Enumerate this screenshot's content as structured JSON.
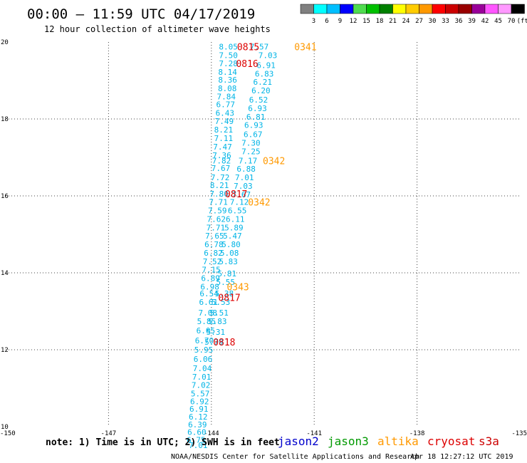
{
  "header": {
    "title": "00:00 — 11:59 UTC 04/17/2019",
    "subtitle": "12 hour collection of altimeter wave heights"
  },
  "color_scale": {
    "swatches": [
      "#808080",
      "#00ffff",
      "#00bfff",
      "#0000ff",
      "#4fdc4f",
      "#00c000",
      "#008000",
      "#ffff00",
      "#ffcc00",
      "#ff9900",
      "#ff0000",
      "#cc0000",
      "#990000",
      "#990099",
      "#ff55ff",
      "#ff99ff",
      "#000000"
    ],
    "labels": [
      "3",
      "6",
      "9",
      "12",
      "15",
      "18",
      "21",
      "24",
      "27",
      "30",
      "33",
      "36",
      "39",
      "42",
      "45",
      "70",
      "(ft)"
    ]
  },
  "footer": {
    "note": "note: 1) Time is in UTC; 2) SWH is in feet",
    "legend": [
      {
        "label": "jason2",
        "color": "#0000cc"
      },
      {
        "label": "jason3",
        "color": "#009900"
      },
      {
        "label": "altika",
        "color": "#ff9900"
      },
      {
        "label": "cryosat",
        "color": "#dd0000"
      },
      {
        "label": "s3a",
        "color": "#cc0000"
      }
    ],
    "credit": "NOAA/NESDIS Center for Satellite Applications and Research",
    "timestamp": "Apr 18 12:27:12 UTC 2019"
  },
  "chart_data": {
    "type": "scatter",
    "xlim": [
      -150,
      -135
    ],
    "ylim": [
      10,
      20
    ],
    "xticks": [
      "-150",
      "-147",
      "-144",
      "-141",
      "-138",
      "-135"
    ],
    "yticks": [
      "10",
      "12",
      "14",
      "16",
      "18",
      "20"
    ],
    "grid": true,
    "wave_color": "#00b4e6",
    "series": [
      {
        "name": "jason3",
        "color": "#00b4e6",
        "points": [
          {
            "x": -143.78,
            "y": 19.88,
            "v": "8.05"
          },
          {
            "x": -142.88,
            "y": 19.88,
            "v": "7.57"
          },
          {
            "x": -143.78,
            "y": 19.66,
            "v": "7.50"
          },
          {
            "x": -142.63,
            "y": 19.66,
            "v": "7.03"
          },
          {
            "x": -143.78,
            "y": 19.44,
            "v": "7.28"
          },
          {
            "x": -142.68,
            "y": 19.4,
            "v": "6.91"
          },
          {
            "x": -143.8,
            "y": 19.22,
            "v": "8.14"
          },
          {
            "x": -142.73,
            "y": 19.18,
            "v": "6.83"
          },
          {
            "x": -143.8,
            "y": 19.02,
            "v": "8.36"
          },
          {
            "x": -142.78,
            "y": 18.96,
            "v": "6.21"
          },
          {
            "x": -143.81,
            "y": 18.8,
            "v": "8.08"
          },
          {
            "x": -142.83,
            "y": 18.74,
            "v": "6.20"
          },
          {
            "x": -143.84,
            "y": 18.58,
            "v": "7.84"
          },
          {
            "x": -142.9,
            "y": 18.5,
            "v": "6.52"
          },
          {
            "x": -143.86,
            "y": 18.38,
            "v": "6.77"
          },
          {
            "x": -142.93,
            "y": 18.28,
            "v": "6.93"
          },
          {
            "x": -143.88,
            "y": 18.16,
            "v": "6.43"
          },
          {
            "x": -142.98,
            "y": 18.06,
            "v": "6.81"
          },
          {
            "x": -143.9,
            "y": 17.94,
            "v": "7.49"
          },
          {
            "x": -143.04,
            "y": 17.84,
            "v": "6.93"
          },
          {
            "x": -143.92,
            "y": 17.72,
            "v": "8.21"
          },
          {
            "x": -143.06,
            "y": 17.6,
            "v": "6.67"
          },
          {
            "x": -143.92,
            "y": 17.5,
            "v": "7.11"
          },
          {
            "x": -143.12,
            "y": 17.38,
            "v": "7.30"
          },
          {
            "x": -143.95,
            "y": 17.28,
            "v": "7.47"
          },
          {
            "x": -143.12,
            "y": 17.16,
            "v": "7.25"
          },
          {
            "x": -143.97,
            "y": 17.06,
            "v": "7.36"
          },
          {
            "x": -143.21,
            "y": 16.92,
            "v": "7.17"
          },
          {
            "x": -143.98,
            "y": 16.92,
            "v": "7.82"
          },
          {
            "x": -143.26,
            "y": 16.7,
            "v": "6.88"
          },
          {
            "x": -144.0,
            "y": 16.72,
            "v": "7.67"
          },
          {
            "x": -143.31,
            "y": 16.48,
            "v": "7.01"
          },
          {
            "x": -144.02,
            "y": 16.48,
            "v": "7.72"
          },
          {
            "x": -143.35,
            "y": 16.26,
            "v": "7.03"
          },
          {
            "x": -144.04,
            "y": 16.28,
            "v": "8.21"
          },
          {
            "x": -144.05,
            "y": 16.06,
            "v": "7.80"
          },
          {
            "x": -143.4,
            "y": 16.04,
            "v": "7.67"
          },
          {
            "x": -144.07,
            "y": 15.84,
            "v": "7.71"
          },
          {
            "x": -143.46,
            "y": 15.84,
            "v": "7.12"
          },
          {
            "x": -144.1,
            "y": 15.62,
            "v": "7.59"
          },
          {
            "x": -143.52,
            "y": 15.62,
            "v": "6.55"
          },
          {
            "x": -144.13,
            "y": 15.4,
            "v": "7.62"
          },
          {
            "x": -143.58,
            "y": 15.4,
            "v": "6.11"
          },
          {
            "x": -144.15,
            "y": 15.18,
            "v": "7.71"
          },
          {
            "x": -143.62,
            "y": 15.18,
            "v": "5.89"
          },
          {
            "x": -144.18,
            "y": 14.96,
            "v": "7.65"
          },
          {
            "x": -143.66,
            "y": 14.96,
            "v": "5.47"
          },
          {
            "x": -144.2,
            "y": 14.74,
            "v": "6.78"
          },
          {
            "x": -143.7,
            "y": 14.74,
            "v": "5.80"
          },
          {
            "x": -144.22,
            "y": 14.52,
            "v": "6.82"
          },
          {
            "x": -143.75,
            "y": 14.52,
            "v": "5.08"
          },
          {
            "x": -144.25,
            "y": 14.3,
            "v": "7.52"
          },
          {
            "x": -143.78,
            "y": 14.3,
            "v": "5.83"
          },
          {
            "x": -144.28,
            "y": 14.08,
            "v": "7.15"
          },
          {
            "x": -143.82,
            "y": 13.98,
            "v": "5.81"
          },
          {
            "x": -144.3,
            "y": 13.86,
            "v": "6.89"
          },
          {
            "x": -143.86,
            "y": 13.76,
            "v": "5.55"
          },
          {
            "x": -144.32,
            "y": 13.64,
            "v": "6.98"
          },
          {
            "x": -144.34,
            "y": 13.46,
            "v": "6.54"
          },
          {
            "x": -143.9,
            "y": 13.46,
            "v": "5.38"
          },
          {
            "x": -144.36,
            "y": 13.24,
            "v": "6.61"
          },
          {
            "x": -144.0,
            "y": 13.24,
            "v": "5.53"
          },
          {
            "x": -144.38,
            "y": 12.96,
            "v": "7.08"
          },
          {
            "x": -144.05,
            "y": 12.96,
            "v": "5.51"
          },
          {
            "x": -144.42,
            "y": 12.74,
            "v": "5.85"
          },
          {
            "x": -144.1,
            "y": 12.74,
            "v": "5.83"
          },
          {
            "x": -144.44,
            "y": 12.5,
            "v": "6.05"
          },
          {
            "x": -144.15,
            "y": 12.46,
            "v": "5.31"
          },
          {
            "x": -144.48,
            "y": 12.24,
            "v": "6.70"
          },
          {
            "x": -144.2,
            "y": 12.2,
            "v": "5.79"
          },
          {
            "x": -144.5,
            "y": 12.0,
            "v": "5.95"
          },
          {
            "x": -144.52,
            "y": 11.76,
            "v": "6.06"
          },
          {
            "x": -144.54,
            "y": 11.52,
            "v": "7.04"
          },
          {
            "x": -144.56,
            "y": 11.3,
            "v": "7.01"
          },
          {
            "x": -144.58,
            "y": 11.08,
            "v": "7.02"
          },
          {
            "x": -144.6,
            "y": 10.86,
            "v": "5.57"
          },
          {
            "x": -144.62,
            "y": 10.66,
            "v": "6.92"
          },
          {
            "x": -144.64,
            "y": 10.46,
            "v": "6.91"
          },
          {
            "x": -144.66,
            "y": 10.26,
            "v": "6.12"
          },
          {
            "x": -144.68,
            "y": 10.06,
            "v": "6.39"
          },
          {
            "x": -144.7,
            "y": 9.86,
            "v": "6.60"
          },
          {
            "x": -144.72,
            "y": 9.66,
            "v": "6.75"
          },
          {
            "x": -144.66,
            "y": 9.52,
            "v": "7.01"
          }
        ]
      }
    ],
    "time_labels": [
      {
        "x": -143.25,
        "y": 19.88,
        "v": "0815",
        "color": "#dd0000"
      },
      {
        "x": -141.58,
        "y": 19.88,
        "v": "0341",
        "color": "#ff9900"
      },
      {
        "x": -143.28,
        "y": 19.44,
        "v": "0816",
        "color": "#dd0000"
      },
      {
        "x": -142.5,
        "y": 16.92,
        "v": "0342",
        "color": "#ff9900"
      },
      {
        "x": -143.6,
        "y": 16.06,
        "v": "0817",
        "color": "#dd0000"
      },
      {
        "x": -142.93,
        "y": 15.84,
        "v": "0342",
        "color": "#ff9900"
      },
      {
        "x": -143.55,
        "y": 13.64,
        "v": "0343",
        "color": "#ff9900"
      },
      {
        "x": -143.8,
        "y": 13.36,
        "v": "0817",
        "color": "#dd0000"
      },
      {
        "x": -143.95,
        "y": 12.2,
        "v": "0818",
        "color": "#dd0000"
      }
    ]
  }
}
